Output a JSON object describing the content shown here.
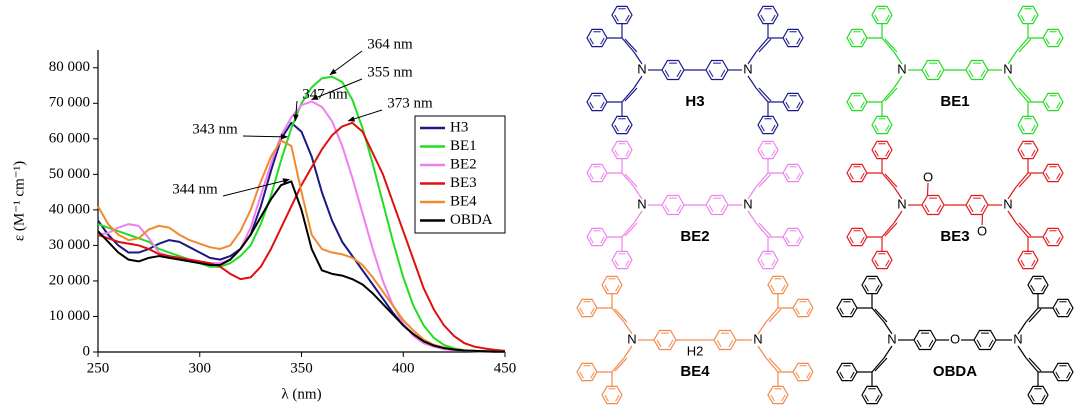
{
  "chart_data": {
    "type": "line",
    "x_label": "λ (nm)",
    "y_label": "ε (M⁻¹ cm⁻¹)",
    "x": [
      250,
      255,
      260,
      265,
      270,
      275,
      280,
      285,
      290,
      295,
      300,
      305,
      310,
      315,
      320,
      325,
      330,
      335,
      340,
      345,
      350,
      355,
      360,
      365,
      370,
      375,
      380,
      385,
      390,
      395,
      400,
      405,
      410,
      415,
      420,
      425,
      430,
      435,
      440,
      445,
      450
    ],
    "series": [
      {
        "name": "H3",
        "color": "#1a1a80",
        "values": [
          37000,
          33000,
          30000,
          28000,
          28000,
          29000,
          30500,
          31500,
          31000,
          29500,
          28000,
          26500,
          26000,
          27000,
          29000,
          33000,
          41000,
          51000,
          60000,
          64500,
          62000,
          55000,
          45000,
          37000,
          31000,
          27000,
          23000,
          19000,
          15000,
          11000,
          7500,
          5000,
          3000,
          2000,
          1200,
          800,
          500,
          300,
          200,
          100,
          100
        ]
      },
      {
        "name": "BE1",
        "color": "#22dd22",
        "values": [
          36000,
          35000,
          34000,
          33000,
          32000,
          31000,
          29000,
          28000,
          27000,
          26000,
          25000,
          24000,
          24000,
          25000,
          27000,
          30000,
          36000,
          44000,
          54000,
          63000,
          70000,
          74500,
          77000,
          77500,
          76000,
          71000,
          63000,
          53000,
          42000,
          31000,
          21000,
          13000,
          7500,
          4000,
          2000,
          1000,
          500,
          300,
          200,
          100,
          100
        ]
      },
      {
        "name": "BE2",
        "color": "#f07ef0",
        "values": [
          33000,
          33500,
          35000,
          36000,
          35500,
          32000,
          28000,
          27000,
          26500,
          26000,
          25500,
          25000,
          25000,
          26000,
          29000,
          35000,
          44000,
          53000,
          61000,
          66000,
          69500,
          70500,
          69000,
          65000,
          58000,
          49000,
          39000,
          29000,
          20000,
          13000,
          8000,
          4500,
          2500,
          1500,
          800,
          500,
          300,
          200,
          100,
          100,
          0
        ]
      },
      {
        "name": "BE3",
        "color": "#e01010",
        "values": [
          33000,
          32000,
          31000,
          30500,
          30000,
          29000,
          27500,
          27000,
          26500,
          26000,
          25500,
          25000,
          24000,
          22000,
          20500,
          21000,
          24000,
          29000,
          35000,
          41000,
          47000,
          52000,
          57000,
          61000,
          63500,
          64500,
          62000,
          56000,
          50000,
          42000,
          34000,
          26000,
          18000,
          12000,
          7500,
          4500,
          2500,
          1500,
          1000,
          600,
          300
        ]
      },
      {
        "name": "BE4",
        "color": "#f08a30",
        "values": [
          41000,
          36000,
          33000,
          31500,
          32000,
          34500,
          35500,
          35000,
          33000,
          31500,
          30500,
          29500,
          29000,
          30000,
          34000,
          40000,
          48000,
          55000,
          59500,
          58000,
          45000,
          33000,
          29000,
          28000,
          27500,
          26500,
          24500,
          21000,
          17000,
          13000,
          9000,
          6000,
          3500,
          2000,
          1200,
          700,
          400,
          300,
          200,
          100,
          100
        ]
      },
      {
        "name": "OBDA",
        "color": "#000000",
        "values": [
          34000,
          31000,
          28000,
          26000,
          25500,
          26500,
          27000,
          26500,
          26000,
          25500,
          25000,
          24500,
          24500,
          26000,
          29000,
          33000,
          38000,
          43000,
          47000,
          48000,
          40000,
          29000,
          23000,
          22000,
          21500,
          20500,
          19000,
          16500,
          13500,
          10500,
          7500,
          5000,
          3000,
          1800,
          1100,
          700,
          400,
          300,
          200,
          100,
          100
        ]
      }
    ],
    "xlim": [
      250,
      450
    ],
    "xticks": [
      250,
      300,
      350,
      400,
      450
    ],
    "ylim": [
      0,
      85000
    ],
    "yticks": [
      0,
      {
        "value": 10000,
        "label": "10 000"
      },
      {
        "value": 20000,
        "label": "20 000"
      },
      {
        "value": 30000,
        "label": "30 000"
      },
      {
        "value": 40000,
        "label": "40 000"
      },
      {
        "value": 50000,
        "label": "50 000"
      },
      {
        "value": 60000,
        "label": "60 000"
      },
      {
        "value": 70000,
        "label": "70 000"
      },
      {
        "value": 80000,
        "label": "80 000"
      }
    ],
    "annotations": [
      {
        "text": "364 nm",
        "x": 364,
        "y": 77500
      },
      {
        "text": "355 nm",
        "x": 355,
        "y": 70500
      },
      {
        "text": "347 nm",
        "x": 347,
        "y": 64500
      },
      {
        "text": "373 nm",
        "x": 373,
        "y": 64500
      },
      {
        "text": "343 nm",
        "x": 343,
        "y": 60000
      },
      {
        "text": "344 nm",
        "x": 344,
        "y": 48000
      }
    ]
  },
  "structures": [
    {
      "label": "H3",
      "color": "#1a1a8c",
      "atoms": [
        "N",
        "N"
      ]
    },
    {
      "label": "BE1",
      "color": "#22dd22",
      "atoms": [
        "N",
        "N"
      ]
    },
    {
      "label": "BE2",
      "color": "#ee82ee",
      "atoms": [
        "N",
        "N"
      ]
    },
    {
      "label": "BE3",
      "color": "#e31a1c",
      "atoms": [
        "N",
        "N",
        "O",
        "O"
      ]
    },
    {
      "label": "BE4",
      "color": "#f4894b",
      "atoms": [
        "N",
        "N",
        "H2"
      ]
    },
    {
      "label": "OBDA",
      "color": "#000000",
      "atoms": [
        "N",
        "N",
        "O"
      ]
    }
  ]
}
